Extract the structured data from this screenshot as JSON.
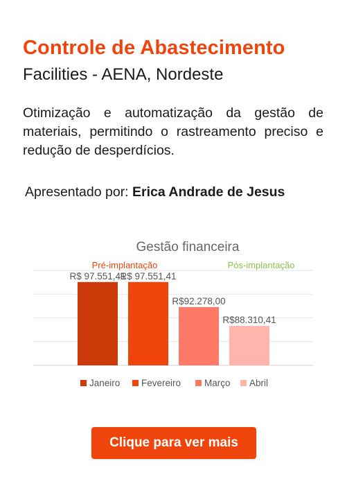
{
  "header": {
    "title": "Controle de Abastecimento",
    "subtitle": "Facilities - AENA, Nordeste"
  },
  "description": "Otimização e automatização da gestão de materiais, permitindo  o rastreamento preciso e redução de desperdícios.",
  "presenter": {
    "prefix": "Apresentado por:",
    "name": "Erica Andrade de Jesus"
  },
  "cta": {
    "label": "Clique para ver mais"
  },
  "colors": {
    "accent": "#f0440d",
    "pre_label": "#f0440d",
    "post_label": "#8bc34a"
  },
  "chart_data": {
    "type": "bar",
    "title": "Gestão financeira",
    "annotations": [
      "Pré-implantação",
      "Pós-implantação"
    ],
    "categories": [
      "Janeiro",
      "Fevereiro",
      "Março",
      "Abril"
    ],
    "values": [
      97551.41,
      97551.41,
      92278.0,
      88310.41
    ],
    "labels": [
      "R$ 97.551,41",
      "R$ 97.551,41",
      "R$92.278,00",
      "R$88.310,41"
    ],
    "colors": [
      "#cc3a0a",
      "#f0440d",
      "#ff7a66",
      "#ffb5ab"
    ],
    "ylim": [
      80000,
      100000
    ],
    "grid": true,
    "legend": "bottom"
  }
}
